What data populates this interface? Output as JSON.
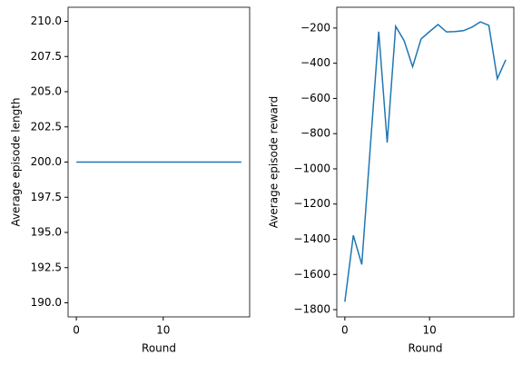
{
  "chart_data": [
    {
      "type": "line",
      "xlabel": "Round",
      "ylabel": "Average episode length",
      "x": [
        0,
        1,
        2,
        3,
        4,
        5,
        6,
        7,
        8,
        9,
        10,
        11,
        12,
        13,
        14,
        15,
        16,
        17,
        18,
        19
      ],
      "series": [
        {
          "color": "#1f77b4",
          "values": [
            200,
            200,
            200,
            200,
            200,
            200,
            200,
            200,
            200,
            200,
            200,
            200,
            200,
            200,
            200,
            200,
            200,
            200,
            200,
            200
          ]
        }
      ],
      "xlim": [
        -0.95,
        19.95
      ],
      "xticks": [
        0,
        10
      ],
      "ylim": [
        189,
        211
      ],
      "yticks": [
        {
          "value": 190,
          "label": "190.0"
        },
        192.5,
        {
          "value": 195,
          "label": "195.0"
        },
        197.5,
        {
          "value": 200,
          "label": "200.0"
        },
        202.5,
        {
          "value": 205,
          "label": "205.0"
        },
        207.5,
        {
          "value": 210,
          "label": "210.0"
        }
      ]
    },
    {
      "type": "line",
      "xlabel": "Round",
      "ylabel": "Average episode reward",
      "x": [
        0,
        1,
        2,
        3,
        4,
        5,
        6,
        7,
        8,
        9,
        10,
        11,
        12,
        13,
        14,
        15,
        16,
        17,
        18,
        19
      ],
      "series": [
        {
          "color": "#1f77b4",
          "values": [
            -1755,
            -1378,
            -1543,
            -880,
            -220,
            -850,
            -190,
            -272,
            -420,
            -262,
            -220,
            -180,
            -222,
            -220,
            -215,
            -195,
            -165,
            -185,
            -488,
            -380
          ]
        }
      ],
      "xlim": [
        -0.95,
        19.95
      ],
      "xticks": [
        0,
        10
      ],
      "ylim": [
        -1841,
        -82
      ],
      "yticks": [
        {
          "value": -1800,
          "label": "−1800"
        },
        {
          "value": -1600,
          "label": "−1600"
        },
        {
          "value": -1400,
          "label": "−1400"
        },
        {
          "value": -1200,
          "label": "−1200"
        },
        {
          "value": -1000,
          "label": "−1000"
        },
        {
          "value": -800,
          "label": "−800"
        },
        {
          "value": -600,
          "label": "−600"
        },
        {
          "value": -400,
          "label": "−400"
        },
        {
          "value": -200,
          "label": "−200"
        }
      ]
    }
  ]
}
